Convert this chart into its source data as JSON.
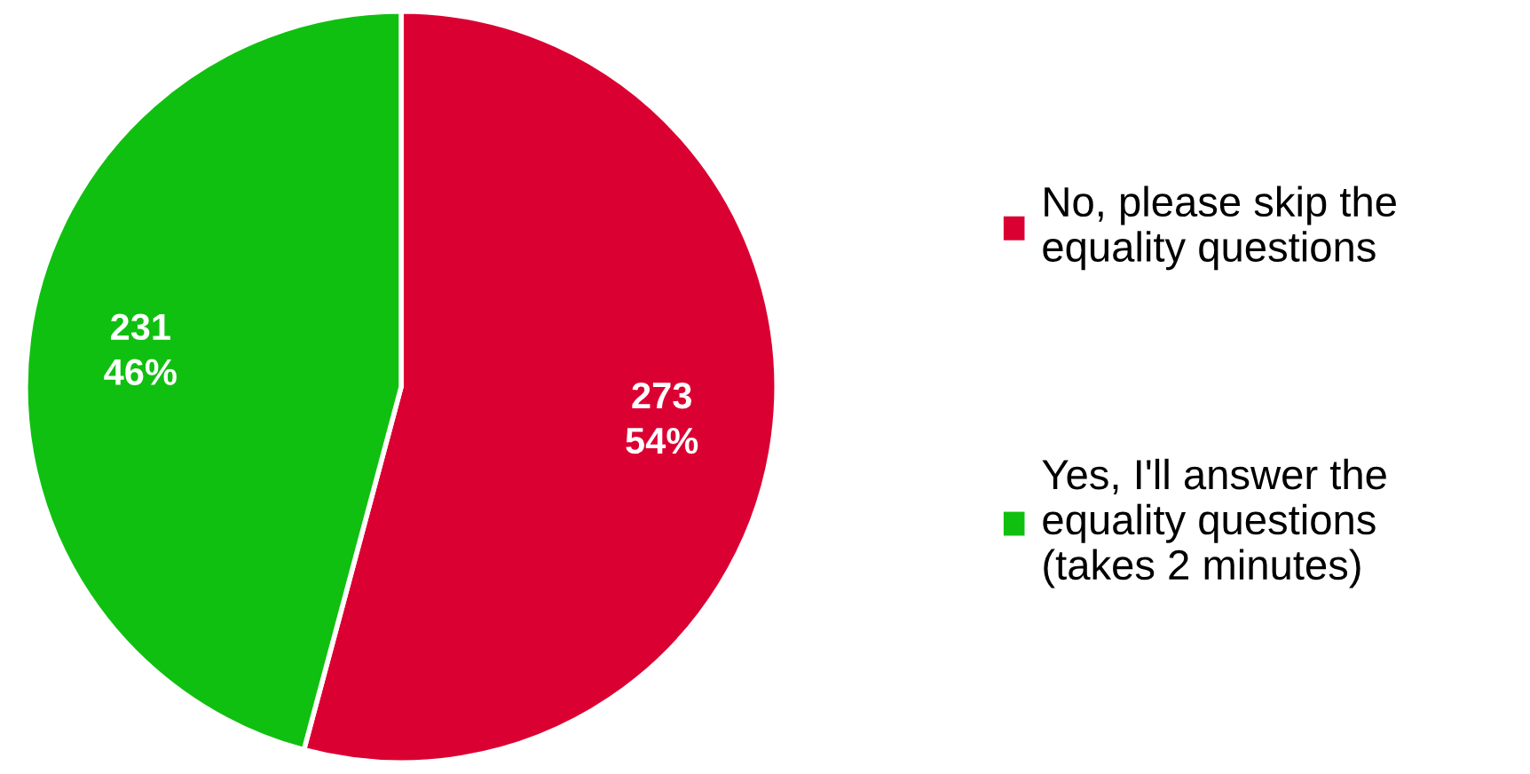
{
  "chart_data": {
    "type": "pie",
    "categories": [
      "No, please skip the\nequality questions",
      "Yes, I'll answer the\nequality questions\n(takes 2 minutes)"
    ],
    "values": [
      273,
      231
    ],
    "colors": [
      "#db0032",
      "#10c010"
    ],
    "value_labels": [
      "273\n54%",
      "231\n46%"
    ],
    "legend": "right"
  }
}
